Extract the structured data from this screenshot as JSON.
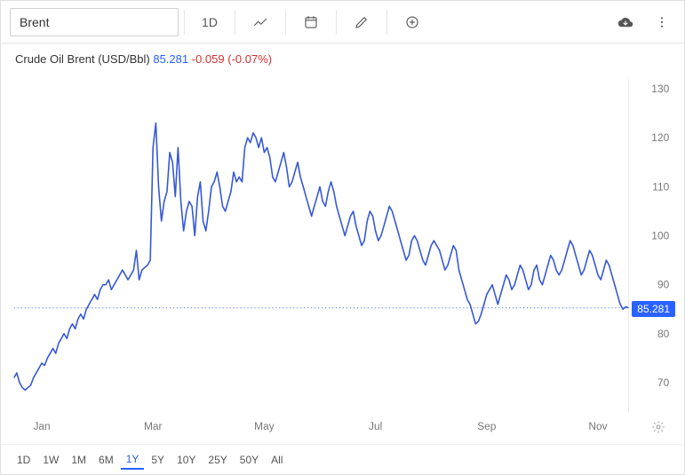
{
  "toolbar": {
    "symbol": "Brent",
    "interval_label": "1D"
  },
  "header": {
    "name": "Crude Oil Brent (USD/Bbl)",
    "price": "85.281",
    "change_abs": "-0.059",
    "change_pct": "(-0.07%)"
  },
  "chart": {
    "type": "line",
    "line_color": "#3658d6",
    "line_width": 1.6,
    "background_color": "#ffffff",
    "grid_color": "#e8e8e8",
    "current_line_color": "#2962ff",
    "current_value": 85.281,
    "ylim": [
      64,
      132
    ],
    "yticks": [
      70,
      80,
      90,
      100,
      110,
      120,
      130
    ],
    "x_months": [
      "Jan",
      "Mar",
      "May",
      "Jul",
      "Sep",
      "Nov"
    ],
    "x_tick_indices": [
      10,
      50,
      90,
      130,
      170,
      210
    ],
    "label_fontsize": 12,
    "label_color": "#777777",
    "series": [
      71,
      72,
      70,
      69,
      68.5,
      69,
      69.5,
      71,
      72,
      73,
      74,
      73.5,
      75,
      76,
      77,
      76,
      78,
      79,
      80,
      79,
      81,
      82,
      81,
      83,
      84,
      83,
      85,
      86,
      87,
      88,
      87,
      89,
      90,
      90,
      91,
      89,
      90,
      91,
      92,
      93,
      92,
      91,
      92,
      93,
      97,
      91,
      93,
      93.5,
      94,
      95,
      118,
      123,
      110,
      103,
      107,
      109,
      117,
      115,
      108,
      118,
      107,
      101,
      105,
      107,
      106,
      100,
      108,
      111,
      103,
      101,
      105,
      110,
      111,
      113,
      110,
      106,
      105,
      107,
      109,
      113,
      111,
      112,
      111,
      118,
      120,
      119,
      121,
      120,
      118,
      120,
      117,
      118,
      116,
      112,
      111,
      113,
      115,
      117,
      114,
      110,
      111,
      113,
      115,
      112,
      110,
      108,
      106,
      104,
      106,
      108,
      110,
      107,
      106,
      109,
      111,
      109,
      106,
      104,
      102,
      100,
      102,
      104,
      105,
      102,
      100,
      98,
      99,
      103,
      105,
      104,
      101,
      99,
      100,
      102,
      104,
      106,
      105,
      103,
      101,
      99,
      97,
      95,
      96,
      99,
      100,
      99,
      97,
      95,
      94,
      96,
      98,
      99,
      98,
      97,
      95,
      93,
      94,
      96,
      98,
      97,
      93,
      91,
      89,
      87,
      86,
      84,
      82,
      82.5,
      84,
      86,
      88,
      89,
      90,
      88,
      86,
      88,
      90,
      92,
      91,
      89,
      90,
      92,
      94,
      93,
      91,
      89,
      90,
      93,
      94,
      91,
      90,
      92,
      94,
      96,
      95,
      93,
      92,
      93,
      95,
      97,
      99,
      98,
      96,
      94,
      92,
      93,
      95,
      97,
      96,
      94,
      92,
      91,
      93,
      95,
      94,
      92,
      90,
      88,
      86,
      85,
      85.5,
      85.281
    ]
  },
  "ranges": {
    "items": [
      "1D",
      "1W",
      "1M",
      "6M",
      "1Y",
      "5Y",
      "10Y",
      "25Y",
      "50Y",
      "All"
    ],
    "active": "1Y"
  }
}
